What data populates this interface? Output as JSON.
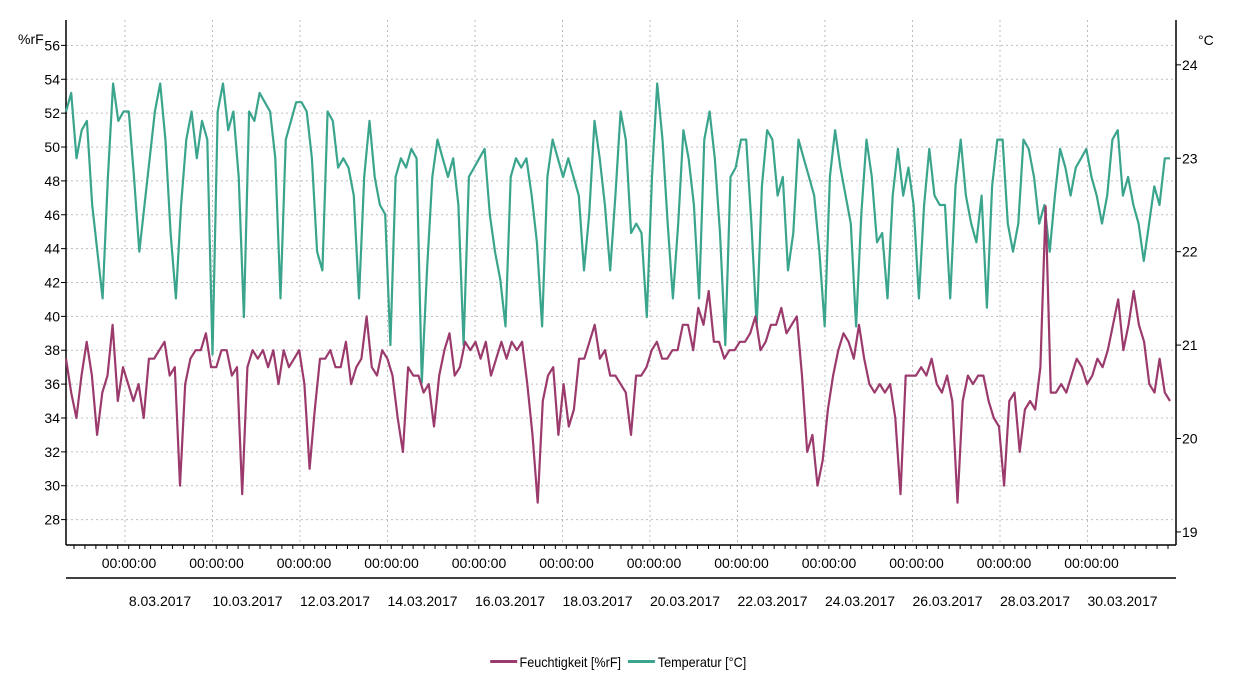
{
  "colors": {
    "humidity": "#9b3a6c",
    "temperature": "#3aa58c",
    "grid": "#bdbdbd",
    "axis": "#000000"
  },
  "chart_data": {
    "type": "line",
    "left_axis": {
      "unit": "%rF",
      "range": [
        26.5,
        57.5
      ],
      "ticks": [
        28,
        30,
        32,
        34,
        36,
        38,
        40,
        42,
        44,
        46,
        48,
        50,
        52,
        54,
        56
      ]
    },
    "right_axis": {
      "unit": "°C",
      "range": [
        18.86,
        24.48
      ],
      "ticks": [
        19,
        20,
        21,
        22,
        23,
        24
      ],
      "top_label": "°C"
    },
    "x_time_labels": [
      "00:00:00",
      "00:00:00",
      "00:00:00",
      "00:00:00",
      "00:00:00",
      "00:00:00",
      "00:00:00",
      "00:00:00",
      "00:00:00",
      "00:00:00",
      "00:00:00",
      "00:00:00"
    ],
    "x_date_labels": [
      "8.03.2017",
      "10.03.2017",
      "12.03.2017",
      "14.03.2017",
      "16.03.2017",
      "18.03.2017",
      "20.03.2017",
      "22.03.2017",
      "24.03.2017",
      "26.03.2017",
      "28.03.2017",
      "30.03.2017"
    ],
    "grid": true,
    "legend_position": "bottom",
    "series": [
      {
        "name": "Feuchtigkeit [%rF]",
        "axis": "left",
        "values": [
          37.5,
          35.5,
          34,
          36.5,
          38.5,
          36.5,
          33,
          35.5,
          36.5,
          39.5,
          35,
          37,
          36,
          35,
          36,
          34,
          37.5,
          37.5,
          38,
          38.5,
          36.5,
          37,
          30,
          36,
          37.5,
          38,
          38,
          39,
          37,
          37,
          38,
          38,
          36.5,
          37,
          29.5,
          37,
          38,
          37.5,
          38,
          37,
          38,
          36,
          38,
          37,
          37.5,
          38,
          36,
          31,
          34.5,
          37.5,
          37.5,
          38,
          37,
          37,
          38.5,
          36,
          37,
          37.5,
          40,
          37,
          36.5,
          38,
          37.5,
          36.5,
          34,
          32,
          37,
          36.5,
          36.5,
          35.5,
          36,
          33.5,
          36.5,
          38,
          39,
          36.5,
          37,
          38.5,
          38,
          38.5,
          37.5,
          38.5,
          36.5,
          37.5,
          38.5,
          37.5,
          38.5,
          38,
          38.5,
          36,
          33,
          29,
          35,
          36.5,
          37,
          33,
          36,
          33.5,
          34.5,
          37.5,
          37.5,
          38.5,
          39.5,
          37.5,
          38,
          36.5,
          36.5,
          36,
          35.5,
          33,
          36.5,
          36.5,
          37,
          38,
          38.5,
          37.5,
          37.5,
          38,
          38,
          39.5,
          39.5,
          38,
          40.5,
          39.5,
          41.5,
          38.5,
          38.5,
          37.5,
          38,
          38,
          38.5,
          38.5,
          39,
          40,
          38,
          38.5,
          39.5,
          39.5,
          40.5,
          39,
          39.5,
          40,
          36.5,
          32,
          33,
          30,
          31.5,
          34.5,
          36.5,
          38,
          39,
          38.5,
          37.5,
          39.5,
          37.5,
          36,
          35.5,
          36,
          35.5,
          36,
          34,
          29.5,
          36.5,
          36.5,
          36.5,
          37,
          36.5,
          37.5,
          36,
          35.5,
          36.5,
          35,
          29,
          35,
          36.5,
          36,
          36.5,
          36.5,
          35,
          34,
          33.5,
          30,
          35,
          35.5,
          32,
          34.5,
          35,
          34.5,
          37,
          46.5,
          35.5,
          35.5,
          36,
          35.5,
          36.5,
          37.5,
          37,
          36,
          36.5,
          37.5,
          37,
          38,
          39.5,
          41,
          38,
          39.5,
          41.5,
          39.5,
          38.5,
          36,
          35.5,
          37.5,
          35.5,
          35
        ]
      },
      {
        "name": "Temperatur [°C]",
        "axis": "right",
        "values": [
          23.5,
          23.7,
          23,
          23.3,
          23.4,
          22.5,
          22,
          21.5,
          22.8,
          23.8,
          23.4,
          23.5,
          23.5,
          22.8,
          22,
          22.5,
          23,
          23.5,
          23.8,
          23.2,
          22.2,
          21.5,
          22.5,
          23.2,
          23.5,
          23,
          23.4,
          23.2,
          20.9,
          23.5,
          23.8,
          23.3,
          23.5,
          22.8,
          21.3,
          23.5,
          23.4,
          23.7,
          23.6,
          23.5,
          23,
          21.5,
          23.2,
          23.4,
          23.6,
          23.6,
          23.5,
          23,
          22,
          21.8,
          23.5,
          23.4,
          22.9,
          23,
          22.9,
          22.6,
          21.5,
          22.8,
          23.4,
          22.8,
          22.5,
          22.4,
          21,
          22.8,
          23,
          22.9,
          23.1,
          23,
          20.6,
          21.8,
          22.8,
          23.2,
          23,
          22.8,
          23,
          22.5,
          21,
          22.8,
          22.9,
          23,
          23.1,
          22.4,
          22,
          21.7,
          21.2,
          22.8,
          23,
          22.9,
          23,
          22.6,
          22.1,
          21.2,
          22.8,
          23.2,
          23,
          22.8,
          23,
          22.8,
          22.6,
          21.8,
          22.4,
          23.4,
          23,
          22.5,
          21.8,
          22.6,
          23.5,
          23.2,
          22.2,
          22.3,
          22.2,
          21.3,
          22.8,
          23.8,
          23.2,
          22.3,
          21.5,
          22.3,
          23.3,
          23,
          22.5,
          21.5,
          23.2,
          23.5,
          23,
          22.2,
          21,
          22.8,
          22.9,
          23.2,
          23.2,
          22.3,
          21.2,
          22.7,
          23.3,
          23.2,
          22.6,
          22.8,
          21.8,
          22.2,
          23.2,
          23,
          22.8,
          22.6,
          22,
          21.2,
          22.8,
          23.3,
          22.9,
          22.6,
          22.3,
          21.2,
          22.4,
          23.2,
          22.8,
          22.1,
          22.2,
          21.5,
          22.6,
          23.1,
          22.6,
          22.9,
          22.5,
          21.5,
          22.5,
          23.1,
          22.6,
          22.5,
          22.5,
          21.5,
          22.7,
          23.2,
          22.6,
          22.3,
          22.1,
          22.6,
          21.4,
          22.7,
          23.2,
          23.2,
          22.3,
          22,
          22.3,
          23.2,
          23.1,
          22.8,
          22.3,
          22.5,
          22,
          22.6,
          23.1,
          22.9,
          22.6,
          22.9,
          23,
          23.1,
          22.8,
          22.6,
          22.3,
          22.6,
          23.2,
          23.3,
          22.6,
          22.8,
          22.5,
          22.3,
          21.9,
          22.3,
          22.7,
          22.5,
          23,
          23
        ]
      }
    ]
  }
}
